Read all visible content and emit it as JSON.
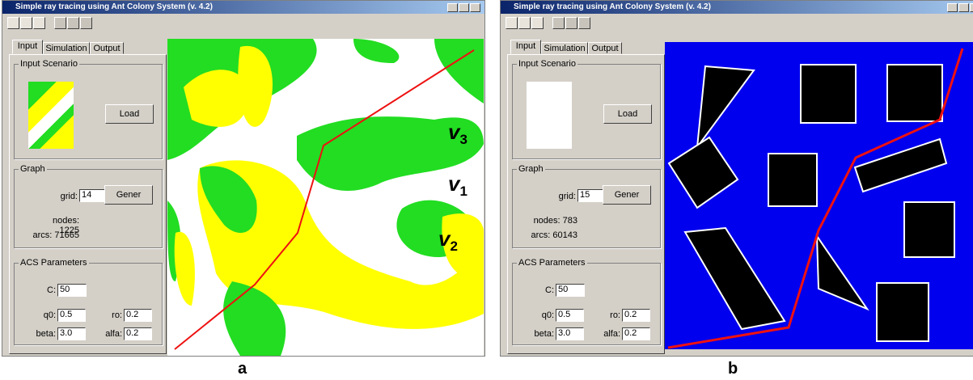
{
  "windows": [
    {
      "title": "Simple ray tracing using Ant Colony System (v. 4.2)",
      "tabs": [
        "Input",
        "Simulation",
        "Output"
      ],
      "groups": {
        "scenario": "Input Scenario",
        "graph": "Graph",
        "acs": "ACS Parameters"
      },
      "load": "Load",
      "grid_label": "grid:",
      "grid": "14",
      "gener": "Gener",
      "nodes": "nodes: 1225",
      "arcs": "arcs: 71665",
      "params": [
        {
          "label": "C:",
          "value": "50"
        },
        {
          "label": "q0:",
          "value": "0.5"
        },
        {
          "label": "ro:",
          "value": "0.2"
        },
        {
          "label": "beta:",
          "value": "3.0"
        },
        {
          "label": "alfa:",
          "value": "0.2"
        }
      ],
      "caption": "a"
    },
    {
      "title": "Simple ray tracing using Ant Colony System (v. 4.2)",
      "tabs": [
        "Input",
        "Simulation",
        "Output"
      ],
      "groups": {
        "scenario": "Input Scenario",
        "graph": "Graph",
        "acs": "ACS Parameters"
      },
      "load": "Load",
      "grid_label": "grid:",
      "grid": "15",
      "gener": "Gener",
      "nodes": "nodes: 783",
      "arcs": "arcs: 60143",
      "params": [
        {
          "label": "C:",
          "value": "50"
        },
        {
          "label": "q0:",
          "value": "0.5"
        },
        {
          "label": "ro:",
          "value": "0.2"
        },
        {
          "label": "beta:",
          "value": "3.0"
        },
        {
          "label": "alfa:",
          "value": "0.2"
        }
      ],
      "caption": "b"
    }
  ],
  "annotations": [
    {
      "text": "v",
      "sub": "3"
    },
    {
      "text": "v",
      "sub": "1"
    },
    {
      "text": "v",
      "sub": "2"
    }
  ]
}
